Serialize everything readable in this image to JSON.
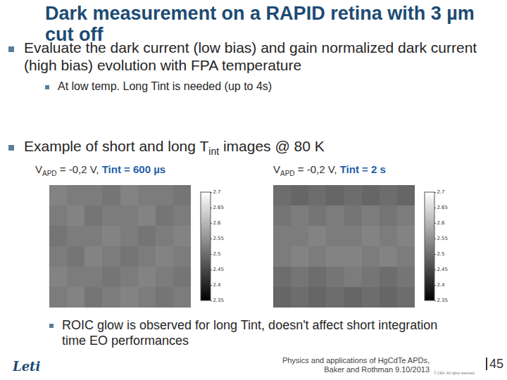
{
  "title": "Dark measurement on a RAPID retina with 3 µm cut off",
  "bullets": [
    {
      "text": "Evaluate the dark current (low bias) and gain normalized dark current (high bias) evolution with FPA temperature",
      "sub": [
        "At low temp. Long Tint is needed (up to 4s)"
      ]
    },
    {
      "text": "Example of short and long T",
      "subscript": "int",
      "tail": " images @ 80 K"
    }
  ],
  "chart_data": [
    {
      "type": "heatmap",
      "label": {
        "symbol": "V",
        "subscript": "APD",
        "text": " = -0,2 V, ",
        "highlight": "Tint = 600 µs"
      },
      "z": [
        [
          2.52,
          2.53,
          2.51,
          2.52,
          2.53,
          2.52,
          2.51,
          2.52
        ],
        [
          2.53,
          2.52,
          2.52,
          2.51,
          2.52,
          2.53,
          2.52,
          2.51
        ],
        [
          2.52,
          2.51,
          2.53,
          2.52,
          2.51,
          2.52,
          2.53,
          2.52
        ],
        [
          2.51,
          2.52,
          2.52,
          2.53,
          2.52,
          2.51,
          2.52,
          2.53
        ],
        [
          2.52,
          2.53,
          2.51,
          2.52,
          2.52,
          2.53,
          2.51,
          2.52
        ],
        [
          2.53,
          2.52,
          2.52,
          2.51,
          2.53,
          2.52,
          2.52,
          2.51
        ]
      ],
      "zlim": [
        2.35,
        2.7
      ],
      "zticks": [
        2.35,
        2.4,
        2.45,
        2.5,
        2.55,
        2.6,
        2.65,
        2.7
      ],
      "color": "gray",
      "tick_labels": false
    },
    {
      "type": "heatmap",
      "label": {
        "symbol": "V",
        "subscript": "APD",
        "text": " = -0,2 V, ",
        "highlight": "Tint = 2 s"
      },
      "z": [
        [
          2.49,
          2.5,
          2.49,
          2.5,
          2.49,
          2.5,
          2.49,
          2.5
        ],
        [
          2.5,
          2.51,
          2.5,
          2.51,
          2.52,
          2.51,
          2.5,
          2.51
        ],
        [
          2.52,
          2.53,
          2.52,
          2.53,
          2.53,
          2.52,
          2.53,
          2.52
        ],
        [
          2.52,
          2.52,
          2.53,
          2.52,
          2.52,
          2.53,
          2.52,
          2.53
        ],
        [
          2.51,
          2.52,
          2.51,
          2.52,
          2.51,
          2.52,
          2.51,
          2.52
        ],
        [
          2.5,
          2.49,
          2.5,
          2.49,
          2.5,
          2.49,
          2.5,
          2.49
        ]
      ],
      "zlim": [
        2.35,
        2.7
      ],
      "zticks": [
        2.35,
        2.4,
        2.45,
        2.5,
        2.55,
        2.6,
        2.65,
        2.7
      ],
      "color": "gray",
      "tick_labels": false
    }
  ],
  "note": "ROIC glow is observed for long Tint, doesn't affect short integration time EO performances",
  "footer": {
    "logo": "Leti",
    "lines": [
      "Physics and applications of HgCdTe APDs,",
      "Baker and Rothman 9.10/2013"
    ],
    "copyright": "© CEA. All rights reserved",
    "page": "45"
  }
}
